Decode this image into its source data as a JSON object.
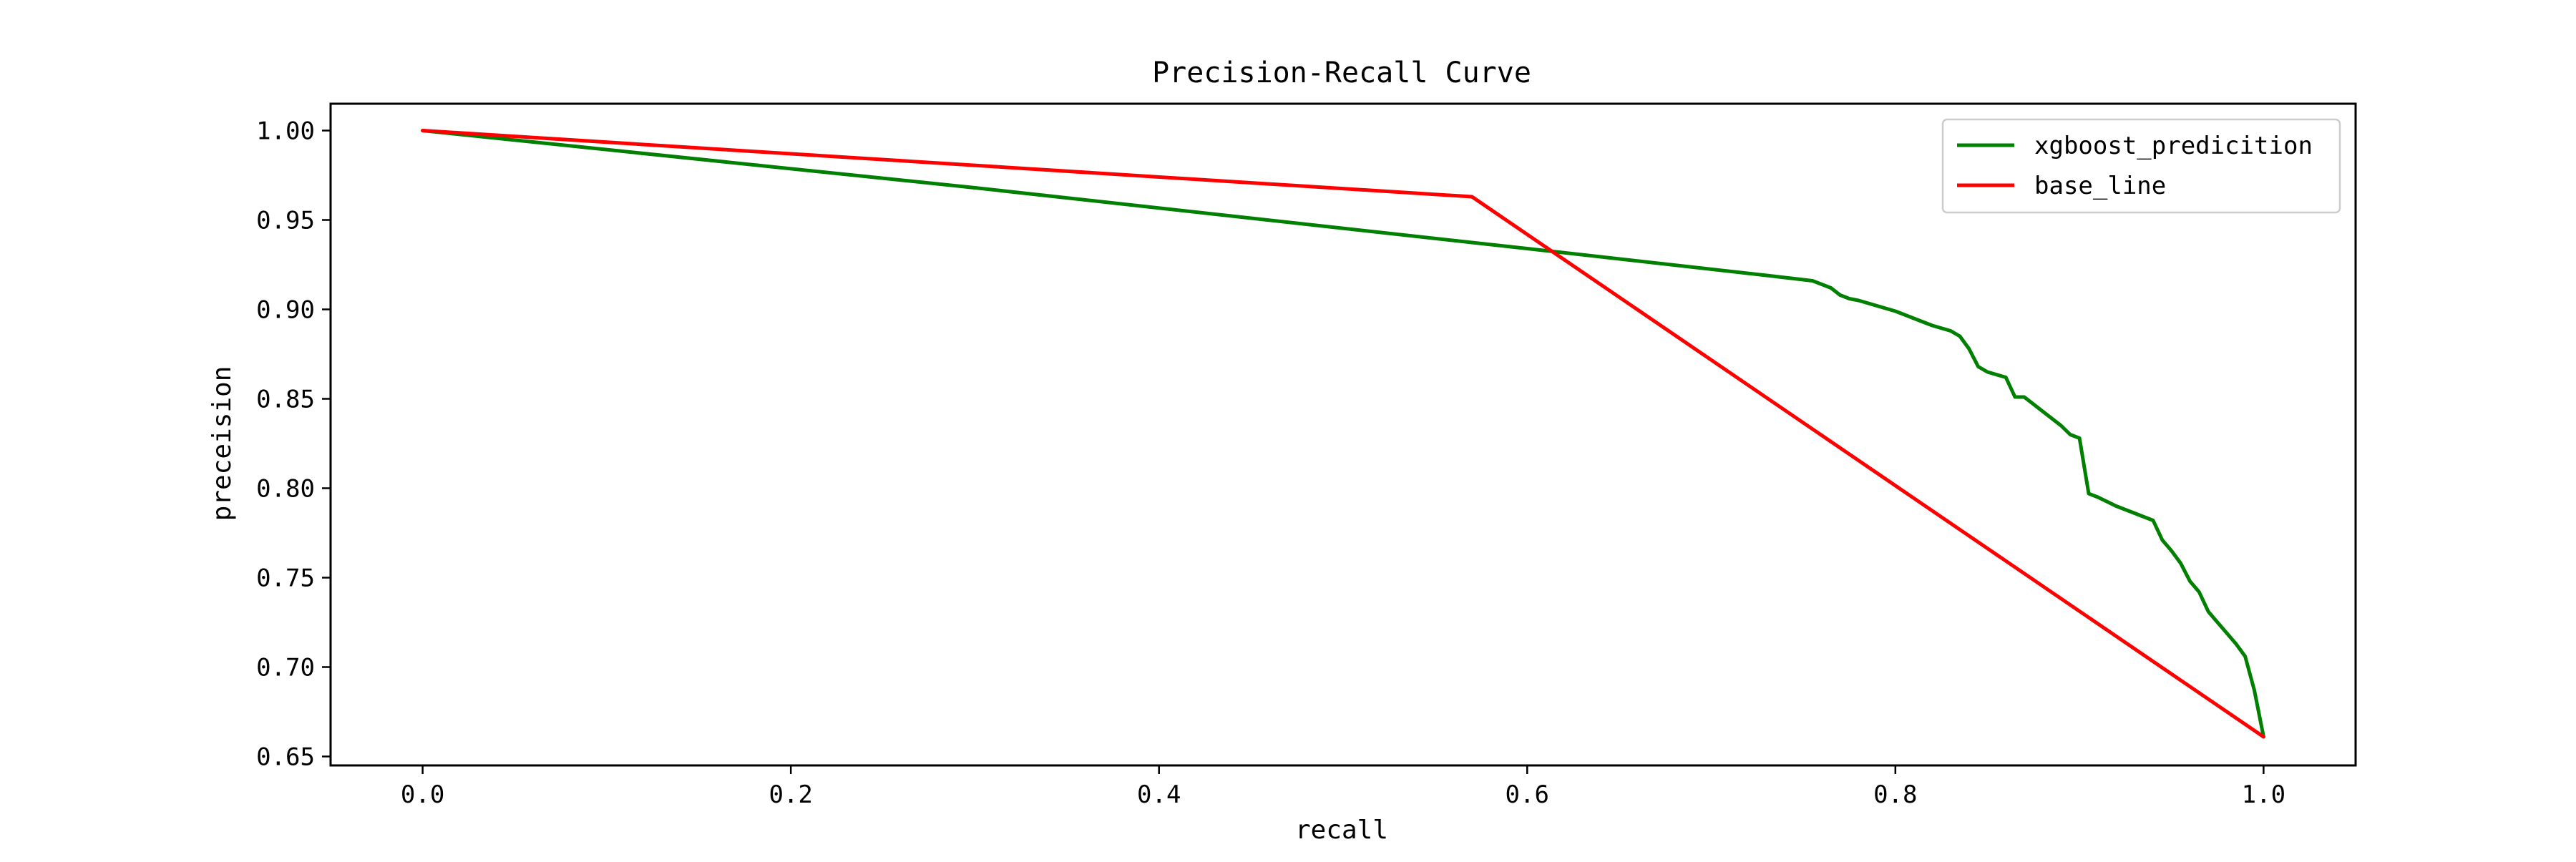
{
  "chart_data": {
    "type": "line",
    "title": "Precision-Recall Curve",
    "xlabel": "recall",
    "ylabel": "preceision",
    "xlim": [
      -0.05,
      1.05
    ],
    "ylim": [
      0.645,
      1.015
    ],
    "x_ticks": [
      "0.0",
      "0.2",
      "0.4",
      "0.6",
      "0.8",
      "1.0"
    ],
    "y_ticks": [
      "0.65",
      "0.70",
      "0.75",
      "0.80",
      "0.85",
      "0.90",
      "0.95",
      "1.00"
    ],
    "grid": false,
    "legend_position": "top-right",
    "series": [
      {
        "name": "xgboost_predicition",
        "color": "#008000",
        "x": [
          0.0,
          0.3,
          0.6,
          0.73,
          0.755,
          0.765,
          0.77,
          0.775,
          0.78,
          0.79,
          0.8,
          0.81,
          0.82,
          0.83,
          0.835,
          0.84,
          0.845,
          0.85,
          0.86,
          0.865,
          0.87,
          0.875,
          0.88,
          0.885,
          0.89,
          0.895,
          0.9,
          0.905,
          0.91,
          0.92,
          0.93,
          0.935,
          0.94,
          0.945,
          0.95,
          0.955,
          0.96,
          0.965,
          0.97,
          0.975,
          0.98,
          0.985,
          0.99,
          0.995,
          1.0
        ],
        "y": [
          1.0,
          0.968,
          0.934,
          0.919,
          0.916,
          0.912,
          0.908,
          0.906,
          0.905,
          0.902,
          0.899,
          0.895,
          0.891,
          0.888,
          0.885,
          0.878,
          0.868,
          0.865,
          0.862,
          0.851,
          0.851,
          0.847,
          0.843,
          0.839,
          0.835,
          0.83,
          0.828,
          0.797,
          0.795,
          0.79,
          0.786,
          0.784,
          0.782,
          0.771,
          0.765,
          0.758,
          0.748,
          0.742,
          0.731,
          0.725,
          0.719,
          0.713,
          0.706,
          0.687,
          0.661
        ]
      },
      {
        "name": "base_line",
        "color": "#ff0000",
        "x": [
          0.0,
          0.57,
          1.0
        ],
        "y": [
          1.0,
          0.963,
          0.661
        ]
      }
    ]
  }
}
